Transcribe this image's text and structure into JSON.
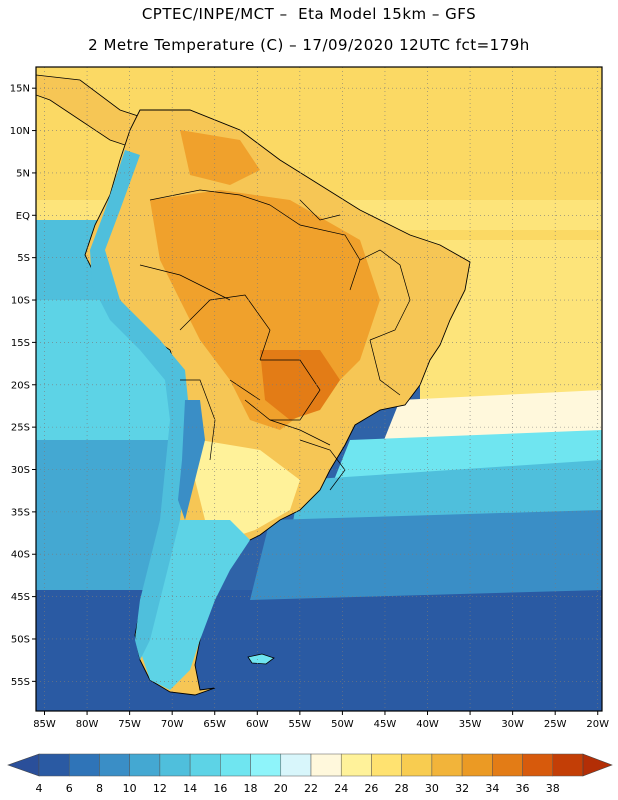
{
  "header": {
    "line1": "CPTEC/INPE/MCT –  Eta Model 15km – GFS",
    "line2": "2 Metre Temperature (C) – 17/09/2020 12UTC fct=179h"
  },
  "map": {
    "lat_labels": [
      "15N",
      "10N",
      "5N",
      "EQ",
      "5S",
      "10S",
      "15S",
      "20S",
      "25S",
      "30S",
      "35S",
      "40S",
      "45S",
      "50S",
      "55S"
    ],
    "lat_values": [
      15,
      10,
      5,
      0,
      -5,
      -10,
      -15,
      -20,
      -25,
      -30,
      -35,
      -40,
      -45,
      -50,
      -55
    ],
    "lon_labels": [
      "85W",
      "80W",
      "75W",
      "70W",
      "65W",
      "60W",
      "55W",
      "50W",
      "45W",
      "40W",
      "35W",
      "30W",
      "25W",
      "20W"
    ],
    "lon_values": [
      -85,
      -80,
      -75,
      -70,
      -65,
      -60,
      -55,
      -50,
      -45,
      -40,
      -35,
      -30,
      -25,
      -20
    ],
    "extent": {
      "lon_min": -86,
      "lon_max": -19.5,
      "lat_min": -58.5,
      "lat_max": 17.5
    }
  },
  "legend": {
    "labels": [
      "4",
      "6",
      "8",
      "10",
      "12",
      "14",
      "16",
      "18",
      "20",
      "22",
      "24",
      "26",
      "28",
      "30",
      "32",
      "34",
      "36",
      "38"
    ],
    "colors": [
      "#2a5aa3",
      "#2f74b8",
      "#3a8ec6",
      "#44a8d2",
      "#4fbfdc",
      "#5dd3e6",
      "#6fe5f0",
      "#8ef4fa",
      "#d8f6fb",
      "#fff8dc",
      "#fff29a",
      "#ffe270",
      "#f8cc50",
      "#f2b43a",
      "#eb9a24",
      "#e37c16",
      "#d75a0c",
      "#c33e06"
    ],
    "low_color": "#2a4f9a",
    "high_color": "#b32e06"
  },
  "colors": {
    "ocean_deep": "#2c5ea5",
    "ocean_mid": "#3f88c3",
    "ocean_shelf": "#52c4de",
    "tropical_ocean": "#fbd964",
    "land_hot": "#f0a12c",
    "land_warm": "#f6c655",
    "andes_cold": "#5dc4e0",
    "border": "#000000"
  }
}
